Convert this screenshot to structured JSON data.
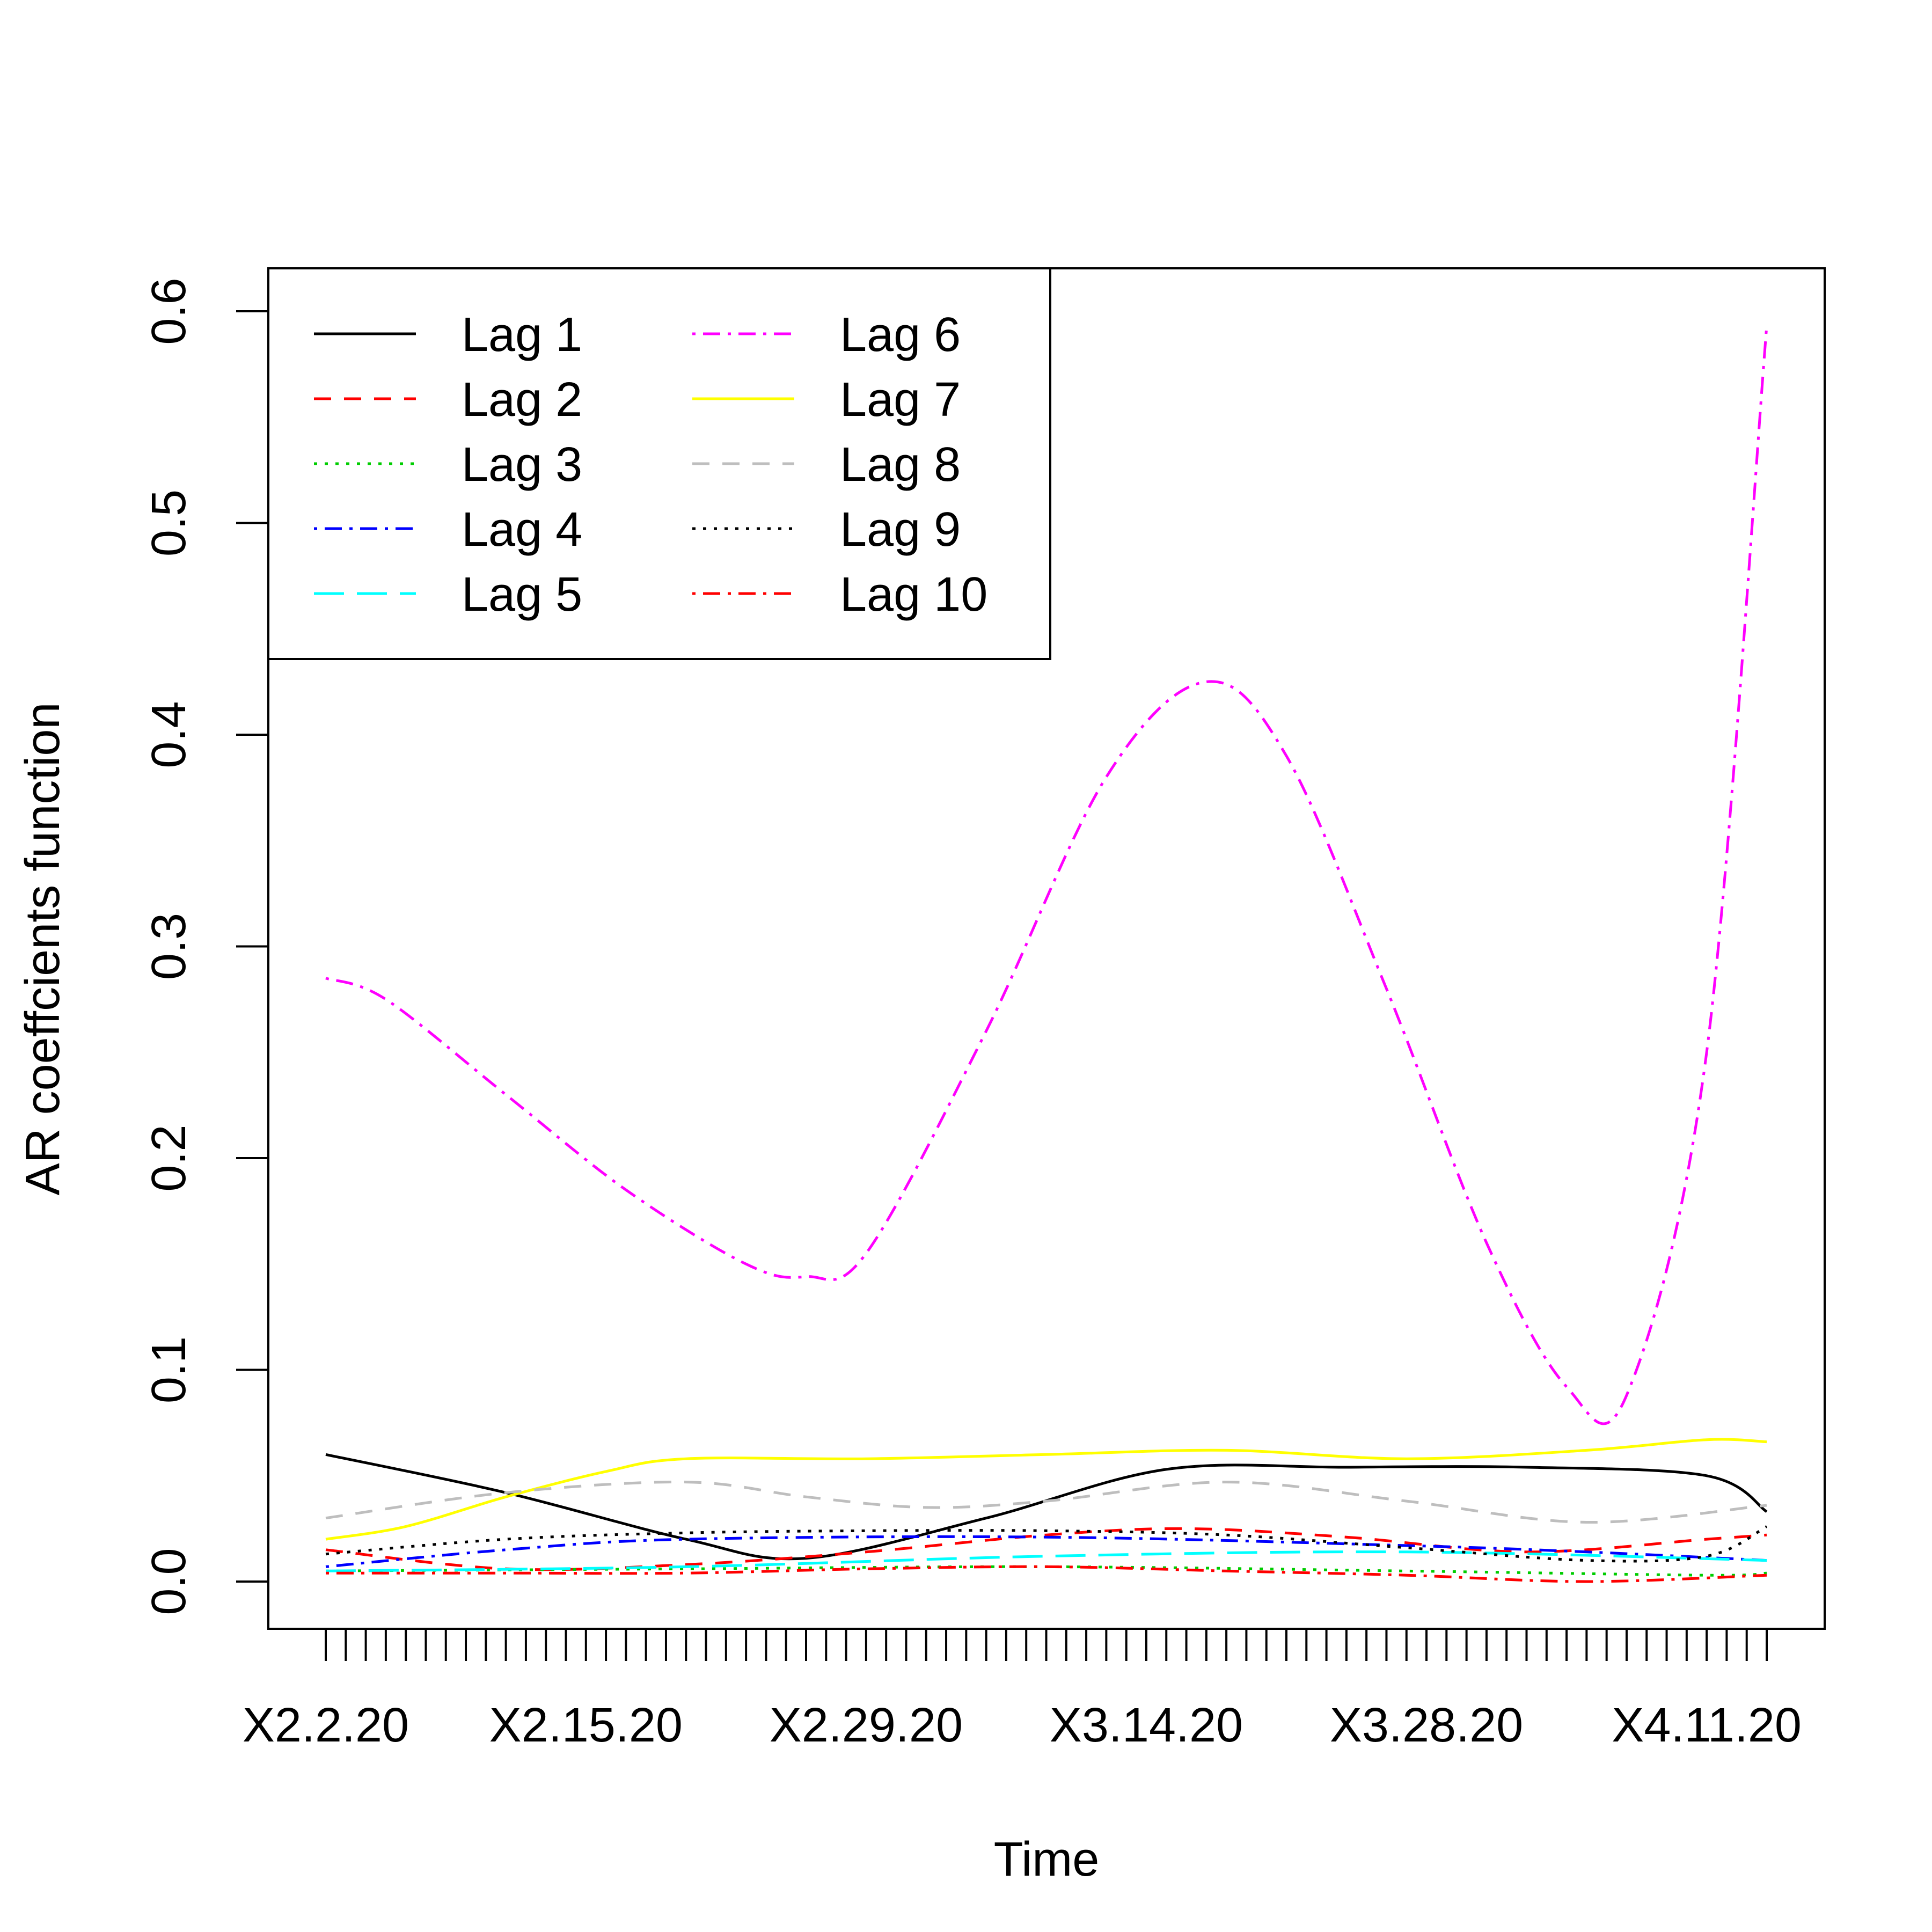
{
  "chart_data": {
    "type": "line",
    "title": "",
    "xlabel": "Time",
    "ylabel": "AR coeffcients function",
    "x_tick_labels": [
      "X2.2.20",
      "X2.15.20",
      "X2.29.20",
      "X3.14.20",
      "X3.28.20",
      "X4.11.20"
    ],
    "x_tick_index": [
      1,
      14,
      28,
      42,
      56,
      70
    ],
    "n_points": 73,
    "xlim": [
      1,
      73
    ],
    "ylim": [
      0,
      0.6
    ],
    "y_ticks": [
      "0.0",
      "0.1",
      "0.2",
      "0.3",
      "0.4",
      "0.5",
      "0.6"
    ],
    "legend_position": "top-left",
    "legend_cols": 2,
    "series": [
      {
        "name": "Lag 1",
        "color": "#000000",
        "dash": "solid",
        "x": [
          1,
          10,
          19,
          25,
          34,
          43,
          52,
          61,
          70,
          73
        ],
        "y": [
          0.06,
          0.042,
          0.02,
          0.011,
          0.03,
          0.053,
          0.054,
          0.054,
          0.05,
          0.033
        ]
      },
      {
        "name": "Lag 2",
        "color": "#ff0000",
        "dash": "dashed",
        "x": [
          1,
          10,
          19,
          28,
          37,
          44,
          52,
          61,
          70,
          73
        ],
        "y": [
          0.015,
          0.006,
          0.008,
          0.014,
          0.022,
          0.025,
          0.021,
          0.014,
          0.02,
          0.022
        ]
      },
      {
        "name": "Lag 3",
        "color": "#00cd00",
        "dash": "dotted",
        "x": [
          1,
          19,
          37,
          55,
          70,
          73
        ],
        "y": [
          0.005,
          0.006,
          0.007,
          0.005,
          0.003,
          0.004
        ]
      },
      {
        "name": "Lag 4",
        "color": "#0000ff",
        "dash": "dotdash",
        "x": [
          1,
          10,
          19,
          37,
          55,
          64,
          73
        ],
        "y": [
          0.007,
          0.015,
          0.02,
          0.021,
          0.017,
          0.014,
          0.01
        ]
      },
      {
        "name": "Lag 5",
        "color": "#00ffff",
        "dash": "longdash",
        "x": [
          1,
          19,
          37,
          55,
          73
        ],
        "y": [
          0.005,
          0.007,
          0.012,
          0.014,
          0.01
        ]
      },
      {
        "name": "Lag 6",
        "color": "#ff00ff",
        "dash": "dotdash",
        "x": [
          1,
          4,
          10,
          16,
          22,
          25,
          28,
          34,
          40,
          45,
          49,
          54,
          59,
          63,
          66,
          70,
          73
        ],
        "y": [
          0.285,
          0.275,
          0.23,
          0.185,
          0.15,
          0.144,
          0.155,
          0.26,
          0.38,
          0.425,
          0.39,
          0.28,
          0.16,
          0.092,
          0.088,
          0.25,
          0.593
        ]
      },
      {
        "name": "Lag 7",
        "color": "#ffff00",
        "dash": "solid",
        "x": [
          1,
          5,
          10,
          15,
          19,
          28,
          37,
          46,
          55,
          64,
          70,
          73
        ],
        "y": [
          0.02,
          0.026,
          0.04,
          0.052,
          0.058,
          0.058,
          0.06,
          0.062,
          0.058,
          0.062,
          0.067,
          0.066
        ]
      },
      {
        "name": "Lag 8",
        "color": "#bebebe",
        "dash": "dashed",
        "x": [
          1,
          10,
          19,
          25,
          31,
          37,
          46,
          55,
          64,
          73
        ],
        "y": [
          0.03,
          0.042,
          0.047,
          0.04,
          0.035,
          0.038,
          0.047,
          0.038,
          0.028,
          0.036
        ]
      },
      {
        "name": "Lag 9",
        "color": "#000000",
        "dash": "dotted",
        "x": [
          1,
          10,
          19,
          28,
          37,
          46,
          55,
          64,
          70,
          73
        ],
        "y": [
          0.013,
          0.02,
          0.023,
          0.024,
          0.024,
          0.022,
          0.016,
          0.01,
          0.012,
          0.026
        ]
      },
      {
        "name": "Lag 10",
        "color": "#ff0000",
        "dash": "dotdash",
        "x": [
          1,
          10,
          19,
          28,
          37,
          46,
          55,
          64,
          73
        ],
        "y": [
          0.004,
          0.004,
          0.004,
          0.006,
          0.007,
          0.005,
          0.003,
          0.0,
          0.003
        ]
      }
    ]
  }
}
